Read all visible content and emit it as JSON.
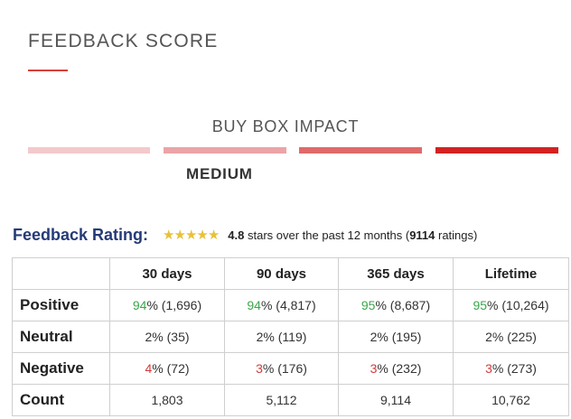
{
  "feedback_score": {
    "title": "FEEDBACK SCORE",
    "accent_color": "#d9403a"
  },
  "buy_box": {
    "label": "BUY BOX IMPACT",
    "level": "MEDIUM",
    "bar_colors": [
      "#f4c9cc",
      "#eba4a7",
      "#e06a6a",
      "#d32222"
    ]
  },
  "rating": {
    "heading": "Feedback Rating:",
    "stars_icon": "five-star-icon",
    "score": "4.8",
    "stars_text": " stars over the past 12 months (",
    "count": "9114",
    "ratings_text": " ratings)"
  },
  "table": {
    "columns": [
      "30 days",
      "90 days",
      "365 days",
      "Lifetime"
    ],
    "rows": [
      {
        "label": "Positive",
        "tone": "green",
        "cells": [
          {
            "pct": "94",
            "rest": "% (1,696)"
          },
          {
            "pct": "94",
            "rest": "% (4,817)"
          },
          {
            "pct": "95",
            "rest": "% (8,687)"
          },
          {
            "pct": "95",
            "rest": "% (10,264)"
          }
        ]
      },
      {
        "label": "Neutral",
        "tone": "none",
        "cells": [
          {
            "pct": "2",
            "rest": "% (35)"
          },
          {
            "pct": "2",
            "rest": "% (119)"
          },
          {
            "pct": "2",
            "rest": "% (195)"
          },
          {
            "pct": "2",
            "rest": "% (225)"
          }
        ]
      },
      {
        "label": "Negative",
        "tone": "red",
        "cells": [
          {
            "pct": "4",
            "rest": "% (72)"
          },
          {
            "pct": "3",
            "rest": "% (176)"
          },
          {
            "pct": "3",
            "rest": "% (232)"
          },
          {
            "pct": "3",
            "rest": "% (273)"
          }
        ]
      },
      {
        "label": "Count",
        "tone": "none",
        "cells": [
          {
            "pct": "",
            "rest": "1,803"
          },
          {
            "pct": "",
            "rest": "5,112"
          },
          {
            "pct": "",
            "rest": "9,114"
          },
          {
            "pct": "",
            "rest": "10,762"
          }
        ]
      }
    ]
  }
}
